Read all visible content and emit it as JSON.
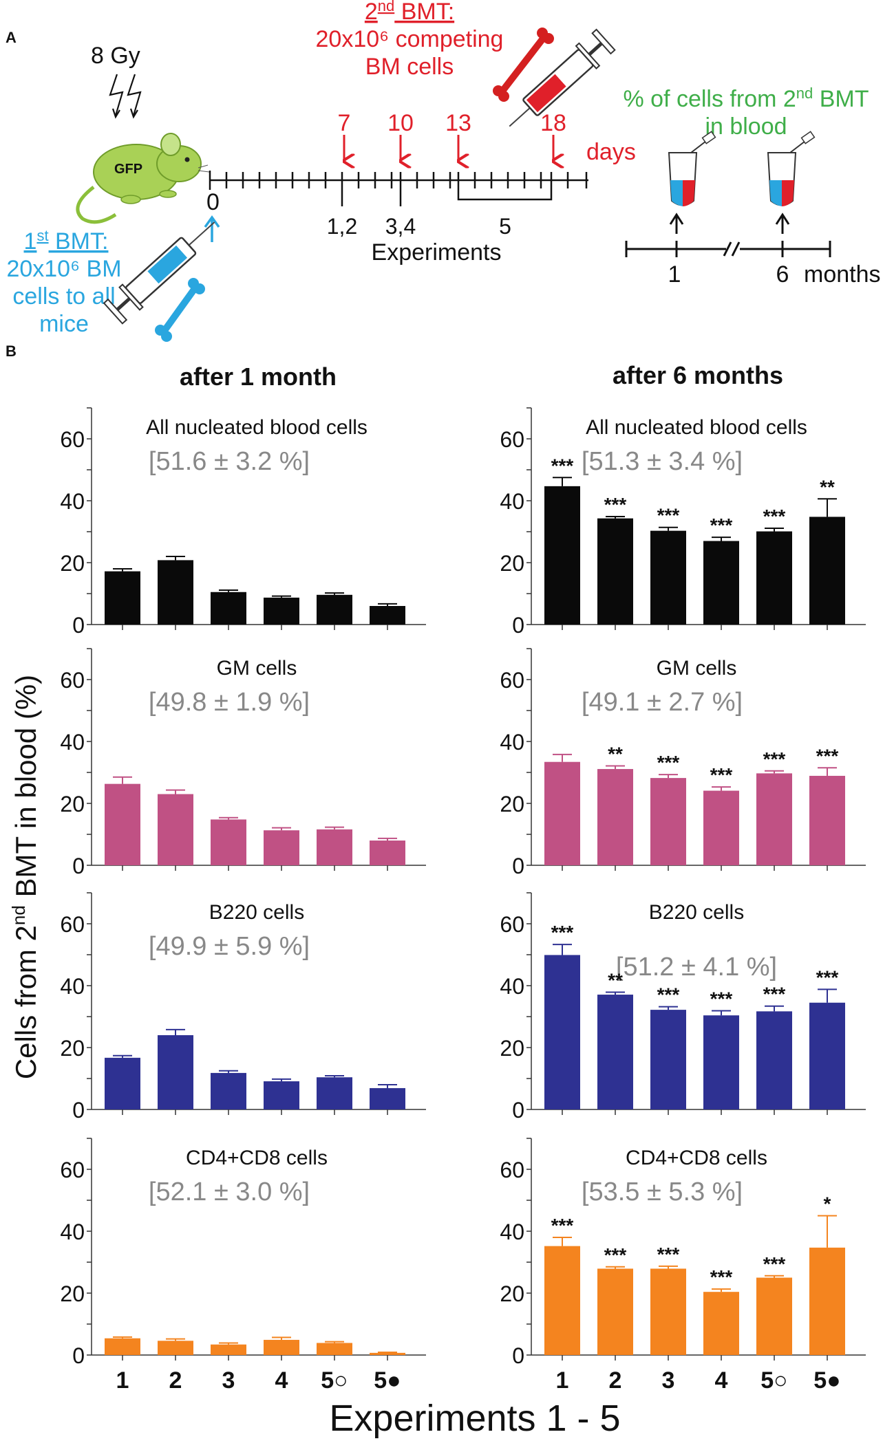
{
  "figure": {
    "panel_a_label": "A",
    "panel_b_label": "B",
    "column_titles": [
      "after 1 month",
      "after 6 months"
    ],
    "y_axis_label_pre": "Cells from 2",
    "y_axis_label_sup": "nd",
    "y_axis_label_post": " BMT in blood (%)",
    "x_axis_label": "Experiments 1 - 5"
  },
  "schema": {
    "irradiation": "8 Gy",
    "mouse_label": "GFP",
    "first_bmt_title": "1st BMT:",
    "first_bmt_lines": [
      "20x10⁶ BM",
      "cells to all",
      "mice"
    ],
    "second_bmt_title": "2nd BMT:",
    "second_bmt_lines": [
      "20x10⁶ competing",
      "BM cells"
    ],
    "day_zero": "0",
    "injection_days": [
      "7",
      "10",
      "13",
      "18"
    ],
    "days_label": "days",
    "experiment_marks": [
      "1,2",
      "3,4",
      "5"
    ],
    "experiments_label": "Experiments",
    "blood_sampling_title": [
      "% of cells from 2nd BMT",
      "in blood"
    ],
    "month_marks": [
      "1",
      "6"
    ],
    "months_label": "months"
  },
  "chart_data": [
    {
      "type": "bar",
      "panel": "after 1 month",
      "title": "All nucleated blood cells",
      "summary": "[51.6 ± 3.2 %]",
      "color": "#0a0a0a",
      "categories": [
        "1",
        "2",
        "3",
        "4",
        "5○",
        "5●"
      ],
      "values": [
        17.2,
        20.8,
        10.5,
        8.7,
        9.6,
        6.0
      ],
      "errors": [
        0.8,
        1.2,
        0.6,
        0.5,
        0.6,
        0.7
      ],
      "significance": [
        "",
        "",
        "",
        "",
        "",
        ""
      ],
      "yticks": [
        0,
        20,
        40,
        60
      ],
      "ylim": [
        0,
        70
      ]
    },
    {
      "type": "bar",
      "panel": "after 6 months",
      "title": "All nucleated blood cells",
      "summary": "[51.3 ± 3.4 %]",
      "color": "#0a0a0a",
      "categories": [
        "1",
        "2",
        "3",
        "4",
        "5○",
        "5●"
      ],
      "values": [
        44.7,
        34.3,
        30.3,
        27.0,
        30.1,
        34.8
      ],
      "errors": [
        2.8,
        0.6,
        1.1,
        1.2,
        1.0,
        5.8
      ],
      "significance": [
        "***",
        "***",
        "***",
        "***",
        "***",
        "**"
      ],
      "yticks": [
        0,
        20,
        40,
        60
      ],
      "ylim": [
        0,
        70
      ]
    },
    {
      "type": "bar",
      "panel": "after 1 month",
      "title": "GM cells",
      "summary": "[49.8 ± 1.9 %]",
      "color": "#c05184",
      "categories": [
        "1",
        "2",
        "3",
        "4",
        "5○",
        "5●"
      ],
      "values": [
        26.3,
        23.0,
        14.8,
        11.3,
        11.6,
        8.0
      ],
      "errors": [
        2.2,
        1.3,
        0.6,
        0.8,
        0.7,
        0.7
      ],
      "significance": [
        "",
        "",
        "",
        "",
        "",
        ""
      ],
      "yticks": [
        0,
        20,
        40,
        60
      ],
      "ylim": [
        0,
        70
      ]
    },
    {
      "type": "bar",
      "panel": "after 6 months",
      "title": "GM cells",
      "summary": "[49.1 ± 2.7 %]",
      "color": "#c05184",
      "categories": [
        "1",
        "2",
        "3",
        "4",
        "5○",
        "5●"
      ],
      "values": [
        33.4,
        31.1,
        28.2,
        24.1,
        29.7,
        28.9
      ],
      "errors": [
        2.4,
        1.0,
        1.1,
        1.2,
        0.8,
        2.6
      ],
      "significance": [
        "",
        "**",
        "***",
        "***",
        "***",
        "***"
      ],
      "yticks": [
        0,
        20,
        40,
        60
      ],
      "ylim": [
        0,
        70
      ]
    },
    {
      "type": "bar",
      "panel": "after 1 month",
      "title": "B220 cells",
      "summary": "[49.9 ± 5.9 %]",
      "color": "#2e3192",
      "categories": [
        "1",
        "2",
        "3",
        "4",
        "5○",
        "5●"
      ],
      "values": [
        16.7,
        24.0,
        11.8,
        9.1,
        10.4,
        6.9
      ],
      "errors": [
        0.7,
        1.8,
        0.7,
        0.7,
        0.5,
        1.1
      ],
      "significance": [
        "",
        "",
        "",
        "",
        "",
        ""
      ],
      "yticks": [
        0,
        20,
        40,
        60
      ],
      "ylim": [
        0,
        70
      ]
    },
    {
      "type": "bar",
      "panel": "after 6 months",
      "title": "B220 cells",
      "summary": "[51.2 ± 4.1 %]",
      "color": "#2e3192",
      "categories": [
        "1",
        "2",
        "3",
        "4",
        "5○",
        "5●"
      ],
      "values": [
        49.9,
        37.1,
        32.2,
        30.4,
        31.7,
        34.5
      ],
      "errors": [
        3.4,
        0.8,
        1.0,
        1.5,
        1.7,
        4.3
      ],
      "significance": [
        "***",
        "**",
        "***",
        "***",
        "***",
        "***"
      ],
      "yticks": [
        0,
        20,
        40,
        60
      ],
      "ylim": [
        0,
        70
      ]
    },
    {
      "type": "bar",
      "panel": "after 1 month",
      "title": "CD4+CD8 cells",
      "summary": "[52.1 ± 3.0 %]",
      "color": "#f4841f",
      "categories": [
        "1",
        "2",
        "3",
        "4",
        "5○",
        "5●"
      ],
      "values": [
        5.4,
        4.6,
        3.4,
        4.9,
        3.9,
        0.7
      ],
      "errors": [
        0.4,
        0.6,
        0.5,
        0.8,
        0.4,
        0.2
      ],
      "significance": [
        "",
        "",
        "",
        "",
        "",
        ""
      ],
      "yticks": [
        0,
        20,
        40,
        60
      ],
      "ylim": [
        0,
        70
      ]
    },
    {
      "type": "bar",
      "panel": "after 6 months",
      "title": "CD4+CD8 cells",
      "summary": "[53.5 ± 5.3 %]",
      "color": "#f4841f",
      "categories": [
        "1",
        "2",
        "3",
        "4",
        "5○",
        "5●"
      ],
      "values": [
        35.2,
        27.9,
        27.9,
        20.4,
        25.0,
        34.7
      ],
      "errors": [
        2.8,
        0.6,
        0.8,
        0.9,
        0.6,
        10.3
      ],
      "significance": [
        "***",
        "***",
        "***",
        "***",
        "***",
        "*"
      ],
      "yticks": [
        0,
        20,
        40,
        60
      ],
      "ylim": [
        0,
        70
      ]
    }
  ]
}
